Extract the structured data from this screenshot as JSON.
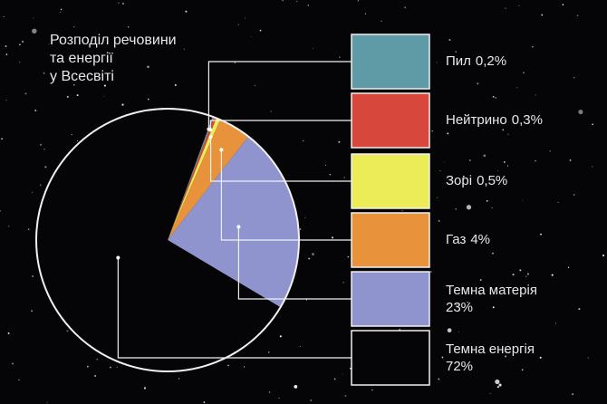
{
  "chart_data": {
    "type": "pie",
    "title": [
      "Розподіл речовини",
      "та енергії",
      "у Всесвіті"
    ],
    "categories": [
      "Пил",
      "Нейтрино",
      "Зорі",
      "Газ",
      "Темна матерія",
      "Темна енергія"
    ],
    "values": [
      0.2,
      0.3,
      0.5,
      4,
      23,
      72
    ],
    "value_labels": [
      "0,2%",
      "0,3%",
      "0,5%",
      "4%",
      "23%",
      "72%"
    ],
    "colors": [
      "#5f9ba7",
      "#d8473b",
      "#ecec58",
      "#e8933b",
      "#8f94cf",
      "#050507"
    ]
  }
}
